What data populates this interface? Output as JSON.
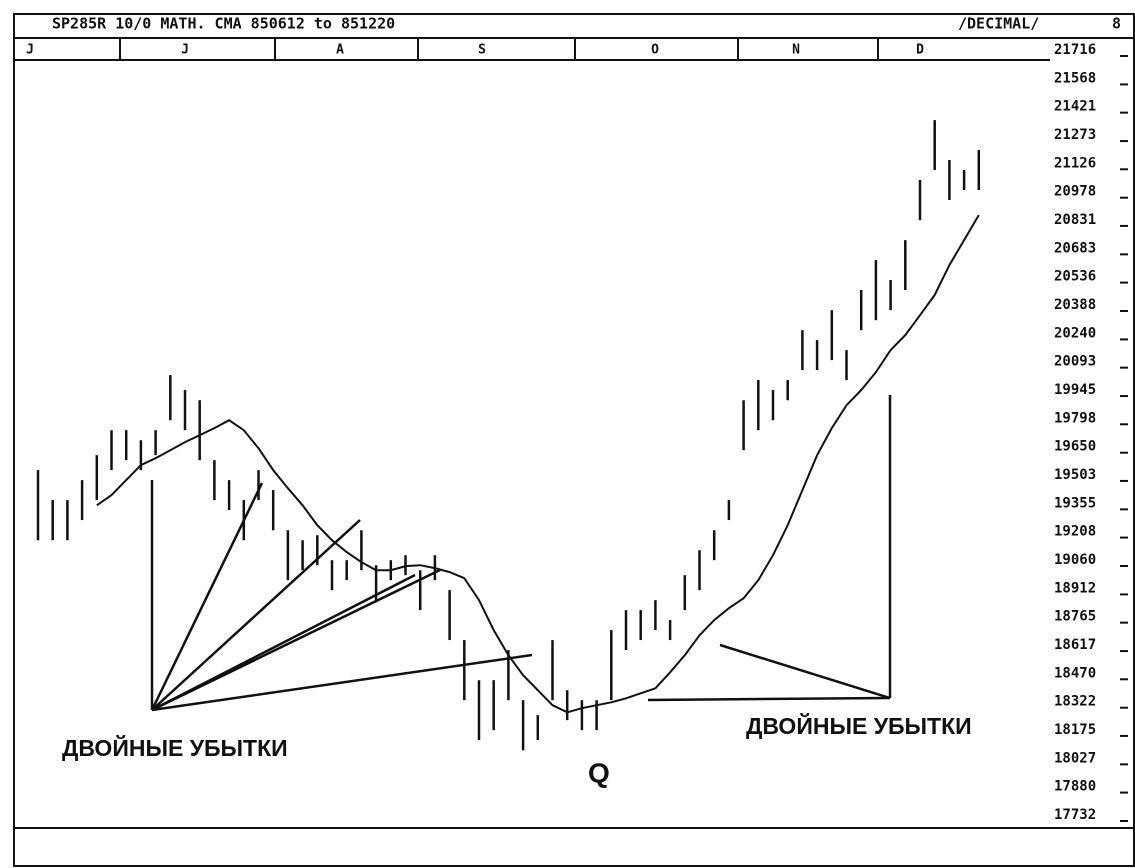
{
  "chart_data": {
    "type": "range-bars",
    "title": "SP285R 10/0 MATH. CMA 850612 to 851220",
    "mode_label": "/DECIMAL/",
    "corner_label": "8",
    "month_labels": [
      "J",
      "J",
      "A",
      "S",
      "O",
      "N",
      "D"
    ],
    "ylim": [
      17732,
      21716
    ],
    "yticks": [
      21716,
      21568,
      21421,
      21273,
      21126,
      20978,
      20831,
      20683,
      20536,
      20388,
      20240,
      20093,
      19945,
      19798,
      19650,
      19503,
      19355,
      19208,
      19060,
      18912,
      18765,
      18617,
      18470,
      18322,
      18175,
      18027,
      17880,
      17732
    ],
    "high": [
      19528,
      19372,
      19372,
      19476,
      19606,
      19736,
      19736,
      19684,
      19736,
      20023,
      19945,
      19892,
      19580,
      19476,
      19372,
      19528,
      19424,
      19215,
      19163,
      19189,
      19059,
      19059,
      19215,
      19033,
      19059,
      19085,
      19007,
      19085,
      18903,
      18643,
      18434,
      18434,
      18591,
      18330,
      18252,
      18643,
      18382,
      18330,
      18330,
      18695,
      18799,
      18799,
      18851,
      18747,
      18981,
      19111,
      19215,
      19372,
      19892,
      19997,
      19945,
      19997,
      20257,
      20205,
      20361,
      20153,
      20466,
      20622,
      20518,
      20726,
      21039,
      21351,
      21143,
      21091,
      21195
    ],
    "low": [
      19163,
      19163,
      19163,
      19268,
      19372,
      19528,
      19580,
      19528,
      19606,
      19788,
      19736,
      19580,
      19372,
      19320,
      19163,
      19372,
      19215,
      18955,
      19007,
      19033,
      18903,
      18955,
      19007,
      18851,
      18955,
      18981,
      18799,
      18955,
      18643,
      18330,
      18122,
      18174,
      18330,
      18069,
      18122,
      18330,
      18226,
      18174,
      18174,
      18330,
      18591,
      18643,
      18695,
      18643,
      18799,
      18903,
      19059,
      19268,
      19632,
      19736,
      19788,
      19892,
      20049,
      20049,
      20101,
      19997,
      20257,
      20309,
      20361,
      20466,
      20830,
      21091,
      20935,
      20987,
      20987
    ],
    "ma": [
      null,
      null,
      null,
      null,
      19345,
      19398,
      19476,
      19554,
      19590,
      19632,
      19674,
      19710,
      19747,
      19788,
      19736,
      19642,
      19528,
      19434,
      19345,
      19241,
      19163,
      19101,
      19049,
      19007,
      19007,
      19028,
      19033,
      19018,
      18997,
      18965,
      18851,
      18695,
      18564,
      18460,
      18382,
      18304,
      18267,
      18288,
      18304,
      18319,
      18340,
      18366,
      18392,
      18475,
      18564,
      18668,
      18747,
      18809,
      18861,
      18955,
      19085,
      19241,
      19424,
      19606,
      19747,
      19866,
      19945,
      20038,
      20153,
      20231,
      20335,
      20440,
      20596,
      20726,
      20856
    ],
    "color": "#111111",
    "annotations": [
      "ДВОЙНЫЕ УБЫТКИ",
      "ДВОЙНЫЕ УБЫТКИ",
      "Q"
    ]
  }
}
